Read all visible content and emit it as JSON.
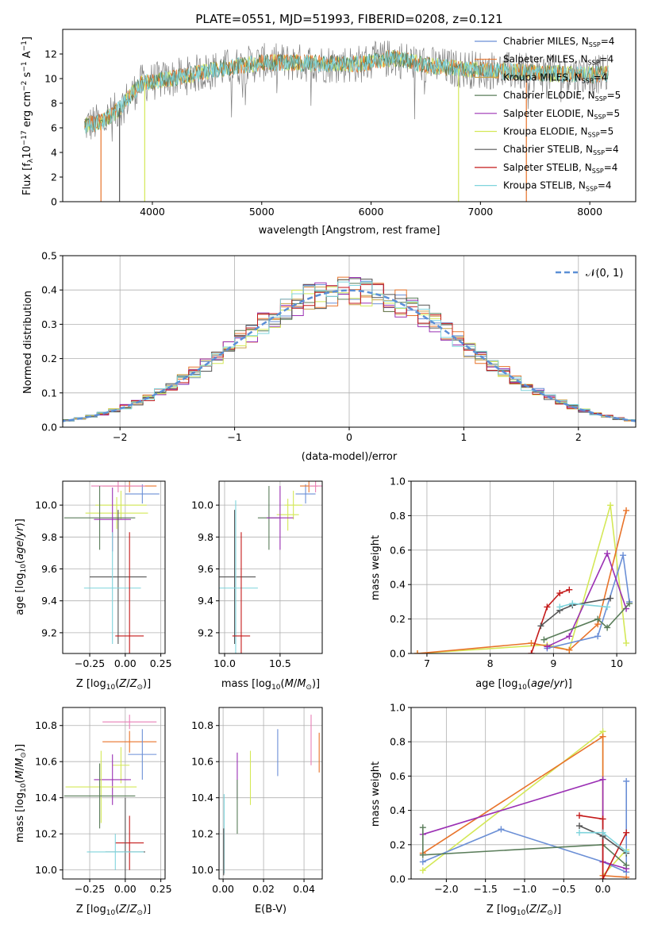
{
  "figure_title": "PLATE=0551, MJD=51993, FIBERID=0208, z=0.121",
  "colors": {
    "chabrier_miles": "#6b8fd6",
    "salpeter_miles": "#e8732a",
    "kroupa_miles": "#c9a24a",
    "chabrier_elodie": "#5a7d5a",
    "salpeter_elodie": "#9b30b4",
    "kroupa_elodie": "#d4e857",
    "chabrier_stelib": "#555555",
    "salpeter_stelib": "#c41a1a",
    "kroupa_stelib": "#7fd4dc",
    "pink": "#e87fb6",
    "normal_curve": "#5b8fd6"
  },
  "chart_data": [
    {
      "id": "spectrum",
      "type": "line",
      "title": "PLATE=0551, MJD=51993, FIBERID=0208, z=0.121",
      "xlabel": "wavelength [Angstrom, rest frame]",
      "ylabel": "Flux [f_λ 10^-17 erg cm^-2 s^-1 A^-1]",
      "xlim": [
        3180,
        8420
      ],
      "ylim": [
        0,
        14
      ],
      "xticks": [
        "4000",
        "5000",
        "6000",
        "7000",
        "8000"
      ],
      "yticks": [
        "0",
        "2",
        "4",
        "6",
        "8",
        "10",
        "12"
      ],
      "grid": false,
      "legend_position": "top-right",
      "legend": [
        "Chabrier MILES, N_SSP=4",
        "Salpeter MILES, N_SSP=4",
        "Kroupa MILES, N_SSP=4",
        "Chabrier ELODIE, N_SSP=5",
        "Salpeter ELODIE, N_SSP=5",
        "Kroupa ELODIE, N_SSP=5",
        "Chabrier STELIB, N_SSP=4",
        "Salpeter STELIB, N_SSP=4",
        "Kroupa STELIB, N_SSP=4"
      ],
      "continuum": {
        "x": [
          3380,
          3550,
          3700,
          3900,
          4100,
          4300,
          4500,
          4700,
          5000,
          5300,
          5600,
          5900,
          6200,
          6500,
          6800,
          7100,
          7400,
          7700,
          8000,
          8170
        ],
        "y": [
          6.2,
          6.5,
          7.6,
          9.6,
          9.9,
          10.2,
          10.6,
          10.9,
          11.3,
          11.3,
          11.2,
          11.2,
          11.7,
          11.1,
          10.8,
          10.7,
          10.5,
          10.4,
          10.3,
          10.4
        ]
      },
      "dips": [
        {
          "x": 3530,
          "color": "salpeter_miles"
        },
        {
          "x": 3700,
          "color": "chabrier_stelib"
        },
        {
          "x": 3930,
          "color": "kroupa_elodie"
        },
        {
          "x": 6800,
          "color": "kroupa_elodie"
        },
        {
          "x": 7420,
          "color": "salpeter_miles"
        }
      ]
    },
    {
      "id": "residual-hist",
      "type": "bar",
      "xlabel": "(data-model)/error",
      "ylabel": "Normed distribution",
      "xlim": [
        -2.5,
        2.5
      ],
      "ylim": [
        0,
        0.5
      ],
      "xticks": [
        "−2",
        "−1",
        "0",
        "1",
        "2"
      ],
      "yticks": [
        "0.0",
        "0.1",
        "0.2",
        "0.3",
        "0.4",
        "0.5"
      ],
      "grid": true,
      "legend_position": "top-right",
      "legend": [
        "𝒩(0, 1)"
      ],
      "bin_width": 0.1,
      "curve": "normal(0,1)"
    },
    {
      "id": "z-age",
      "type": "scatter",
      "xlabel": "Z [log10(Z/Z⊙)]",
      "ylabel": "age  [log10(age/yr)]",
      "xlim": [
        -0.44,
        0.28
      ],
      "ylim": [
        9.07,
        10.15
      ],
      "xticks": [
        "−0.25",
        "0.00",
        "0.25"
      ],
      "yticks": [
        "9.2",
        "9.4",
        "9.6",
        "9.8",
        "10.0"
      ],
      "grid": true,
      "points": [
        {
          "x": 0.12,
          "y": 10.07,
          "xerr": 0.12,
          "yerr": 0.06,
          "c": "chabrier_miles"
        },
        {
          "x": 0.03,
          "y": 10.12,
          "xerr": 0.19,
          "yerr": 0.04,
          "c": "salpeter_miles"
        },
        {
          "x": -0.05,
          "y": 10.12,
          "xerr": 0.19,
          "yerr": 0.04,
          "c": "pink"
        },
        {
          "x": -0.03,
          "y": 10.0,
          "xerr": 0.18,
          "yerr": 0.09,
          "c": "kroupa_elodie"
        },
        {
          "x": -0.06,
          "y": 9.95,
          "xerr": 0.22,
          "yerr": 0.1,
          "c": "kroupa_elodie"
        },
        {
          "x": -0.18,
          "y": 9.92,
          "xerr": 0.25,
          "yerr": 0.2,
          "c": "chabrier_elodie"
        },
        {
          "x": -0.09,
          "y": 9.91,
          "xerr": 0.13,
          "yerr": 0.2,
          "c": "salpeter_elodie"
        },
        {
          "x": -0.05,
          "y": 9.55,
          "xerr": 0.2,
          "yerr": 0.42,
          "c": "chabrier_stelib"
        },
        {
          "x": -0.09,
          "y": 9.48,
          "xerr": 0.2,
          "yerr": 0.35,
          "c": "kroupa_stelib"
        },
        {
          "x": 0.03,
          "y": 9.18,
          "xerr": 0.1,
          "yerr": 0.65,
          "c": "salpeter_stelib"
        }
      ]
    },
    {
      "id": "mass-age",
      "type": "scatter",
      "xlabel": "mass [log10(M/M⊙)]",
      "ylabel": "",
      "xlim": [
        9.95,
        10.88
      ],
      "ylim": [
        9.07,
        10.15
      ],
      "xticks": [
        "10.0",
        "10.5"
      ],
      "yticks": [
        "9.2",
        "9.4",
        "9.6",
        "9.8",
        "10.0"
      ],
      "grid": true,
      "points": [
        {
          "x": 10.73,
          "y": 10.07,
          "xerr": 0.09,
          "yerr": 0.06,
          "c": "chabrier_miles"
        },
        {
          "x": 10.76,
          "y": 10.12,
          "xerr": 0.08,
          "yerr": 0.04,
          "c": "salpeter_miles"
        },
        {
          "x": 10.82,
          "y": 10.12,
          "xerr": 0.06,
          "yerr": 0.04,
          "c": "pink"
        },
        {
          "x": 10.62,
          "y": 10.0,
          "xerr": 0.08,
          "yerr": 0.09,
          "c": "kroupa_elodie"
        },
        {
          "x": 10.57,
          "y": 9.94,
          "xerr": 0.1,
          "yerr": 0.1,
          "c": "kroupa_elodie"
        },
        {
          "x": 10.4,
          "y": 9.92,
          "xerr": 0.1,
          "yerr": 0.2,
          "c": "chabrier_elodie"
        },
        {
          "x": 10.5,
          "y": 9.92,
          "xerr": 0.12,
          "yerr": 0.2,
          "c": "salpeter_elodie"
        },
        {
          "x": 10.09,
          "y": 9.55,
          "xerr": 0.19,
          "yerr": 0.42,
          "c": "chabrier_stelib"
        },
        {
          "x": 10.1,
          "y": 9.48,
          "xerr": 0.2,
          "yerr": 0.55,
          "c": "kroupa_stelib"
        },
        {
          "x": 10.15,
          "y": 9.18,
          "xerr": 0.08,
          "yerr": 0.65,
          "c": "salpeter_stelib"
        }
      ]
    },
    {
      "id": "age-weight",
      "type": "line",
      "xlabel": "age  [log10(age/yr)]",
      "ylabel": "mass weight",
      "xlim": [
        6.75,
        10.3
      ],
      "ylim": [
        0,
        1
      ],
      "xticks": [
        "7",
        "8",
        "9",
        "10"
      ],
      "yticks": [
        "0.0",
        "0.2",
        "0.4",
        "0.6",
        "0.8",
        "1.0"
      ],
      "grid": true,
      "series": [
        {
          "c": "kroupa_elodie",
          "x": [
            6.85,
            8.9,
            9.25,
            9.9,
            10.15
          ],
          "y": [
            0.0,
            0.05,
            0.02,
            0.86,
            0.06
          ]
        },
        {
          "c": "salpeter_miles",
          "x": [
            6.85,
            8.65,
            9.25,
            9.7,
            10.15
          ],
          "y": [
            0.0,
            0.06,
            0.02,
            0.17,
            0.83
          ]
        },
        {
          "c": "chabrier_miles",
          "x": [
            8.9,
            9.7,
            10.1,
            10.2
          ],
          "y": [
            0.03,
            0.1,
            0.57,
            0.3
          ]
        },
        {
          "c": "salpeter_elodie",
          "x": [
            8.9,
            9.25,
            9.85,
            10.15
          ],
          "y": [
            0.04,
            0.1,
            0.58,
            0.26
          ]
        },
        {
          "c": "chabrier_elodie",
          "x": [
            8.85,
            9.7,
            9.85,
            10.2
          ],
          "y": [
            0.08,
            0.2,
            0.15,
            0.29
          ]
        },
        {
          "c": "salpeter_stelib",
          "x": [
            8.65,
            8.9,
            9.1,
            9.25
          ],
          "y": [
            0.0,
            0.27,
            0.35,
            0.37
          ]
        },
        {
          "c": "chabrier_stelib",
          "x": [
            8.8,
            9.1,
            9.3,
            9.9
          ],
          "y": [
            0.16,
            0.25,
            0.28,
            0.32
          ]
        },
        {
          "c": "kroupa_stelib",
          "x": [
            9.1,
            9.3,
            9.85
          ],
          "y": [
            0.27,
            0.29,
            0.27
          ]
        }
      ]
    },
    {
      "id": "z-mass",
      "type": "scatter",
      "xlabel": "Z [log10(Z/Z⊙)]",
      "ylabel": "mass [log10(M/M⊙)]",
      "xlim": [
        -0.44,
        0.28
      ],
      "ylim": [
        9.95,
        10.9
      ],
      "xticks": [
        "−0.25",
        "0.00",
        "0.25"
      ],
      "yticks": [
        "10.0",
        "10.2",
        "10.4",
        "10.6",
        "10.8"
      ],
      "grid": true,
      "points": [
        {
          "x": 0.03,
          "y": 10.82,
          "xerr": 0.19,
          "yerr": 0.04,
          "c": "pink"
        },
        {
          "x": 0.03,
          "y": 10.71,
          "xerr": 0.19,
          "yerr": 0.06,
          "c": "salpeter_miles"
        },
        {
          "x": 0.12,
          "y": 10.64,
          "xerr": 0.1,
          "yerr": 0.14,
          "c": "chabrier_miles"
        },
        {
          "x": -0.03,
          "y": 10.58,
          "xerr": 0.06,
          "yerr": 0.1,
          "c": "kroupa_elodie"
        },
        {
          "x": -0.09,
          "y": 10.5,
          "xerr": 0.13,
          "yerr": 0.14,
          "c": "salpeter_elodie"
        },
        {
          "x": -0.17,
          "y": 10.46,
          "xerr": 0.25,
          "yerr": 0.2,
          "c": "kroupa_elodie"
        },
        {
          "x": -0.18,
          "y": 10.41,
          "xerr": 0.25,
          "yerr": 0.18,
          "c": "chabrier_elodie"
        },
        {
          "x": 0.03,
          "y": 10.15,
          "xerr": 0.1,
          "yerr": 0.15,
          "c": "salpeter_stelib"
        },
        {
          "x": 0.0,
          "y": 10.1,
          "xerr": 0.14,
          "yerr": 0.3,
          "c": "chabrier_stelib"
        },
        {
          "x": -0.07,
          "y": 10.1,
          "xerr": 0.2,
          "yerr": 0.1,
          "c": "kroupa_stelib"
        }
      ]
    },
    {
      "id": "ebv-mass",
      "type": "scatter",
      "xlabel": "E(B-V)",
      "ylabel": "",
      "xlim": [
        -0.002,
        0.049
      ],
      "ylim": [
        9.95,
        10.9
      ],
      "xticks": [
        "0.00",
        "0.02",
        "0.04"
      ],
      "yticks": [
        "10.0",
        "10.2",
        "10.4",
        "10.6",
        "10.8"
      ],
      "grid": true,
      "points": [
        {
          "x": 0.0435,
          "y": 10.72,
          "xerr": 0,
          "yerr": 0.14,
          "c": "pink"
        },
        {
          "x": 0.0475,
          "y": 10.65,
          "xerr": 0,
          "yerr": 0.11,
          "c": "salpeter_miles"
        },
        {
          "x": 0.027,
          "y": 10.65,
          "xerr": 0,
          "yerr": 0.13,
          "c": "chabrier_miles"
        },
        {
          "x": 0.007,
          "y": 10.52,
          "xerr": 0,
          "yerr": 0.13,
          "c": "salpeter_elodie"
        },
        {
          "x": 0.0135,
          "y": 10.51,
          "xerr": 0,
          "yerr": 0.15,
          "c": "kroupa_elodie"
        },
        {
          "x": 0.007,
          "y": 10.35,
          "xerr": 0,
          "yerr": 0.15,
          "c": "chabrier_elodie"
        },
        {
          "x": 0.0005,
          "y": 10.2,
          "xerr": 0,
          "yerr": 0.22,
          "c": "kroupa_stelib"
        },
        {
          "x": 0.0003,
          "y": 10.1,
          "xerr": 0,
          "yerr": 0.13,
          "c": "chabrier_stelib"
        }
      ]
    },
    {
      "id": "z-weight",
      "type": "line",
      "xlabel": "Z [log10(Z/Z⊙)]",
      "ylabel": "mass weight",
      "xlim": [
        -2.45,
        0.42
      ],
      "ylim": [
        0,
        1
      ],
      "xticks": [
        "−2.0",
        "−1.5",
        "−1.0",
        "−0.5",
        "0.0"
      ],
      "yticks": [
        "0.0",
        "0.2",
        "0.4",
        "0.6",
        "0.8",
        "1.0"
      ],
      "grid": true,
      "series": [
        {
          "c": "kroupa_elodie",
          "x": [
            -2.3,
            0.0,
            0.0,
            0.3
          ],
          "y": [
            0.05,
            0.86,
            0.02,
            0.17
          ]
        },
        {
          "c": "salpeter_miles",
          "x": [
            -2.3,
            0.0,
            0.0,
            0.3
          ],
          "y": [
            0.15,
            0.83,
            0.02,
            0.01
          ]
        },
        {
          "c": "chabrier_miles",
          "x": [
            -2.3,
            -1.3,
            0.0,
            0.3,
            0.3
          ],
          "y": [
            0.1,
            0.29,
            0.1,
            0.04,
            0.57
          ]
        },
        {
          "c": "salpeter_elodie",
          "x": [
            -2.3,
            0.0,
            0.0,
            0.3
          ],
          "y": [
            0.26,
            0.58,
            0.1,
            0.06
          ]
        },
        {
          "c": "chabrier_elodie",
          "x": [
            -2.3,
            -2.3,
            0.0,
            0.3
          ],
          "y": [
            0.3,
            0.14,
            0.2,
            0.08
          ]
        },
        {
          "c": "salpeter_stelib",
          "x": [
            -0.3,
            0.0,
            0.0,
            0.3
          ],
          "y": [
            0.37,
            0.35,
            0.0,
            0.27
          ]
        },
        {
          "c": "chabrier_stelib",
          "x": [
            -0.3,
            0.0,
            0.3
          ],
          "y": [
            0.31,
            0.25,
            0.15
          ]
        },
        {
          "c": "kroupa_stelib",
          "x": [
            -0.3,
            0.0,
            0.3
          ],
          "y": [
            0.27,
            0.27,
            0.16
          ]
        }
      ]
    }
  ]
}
